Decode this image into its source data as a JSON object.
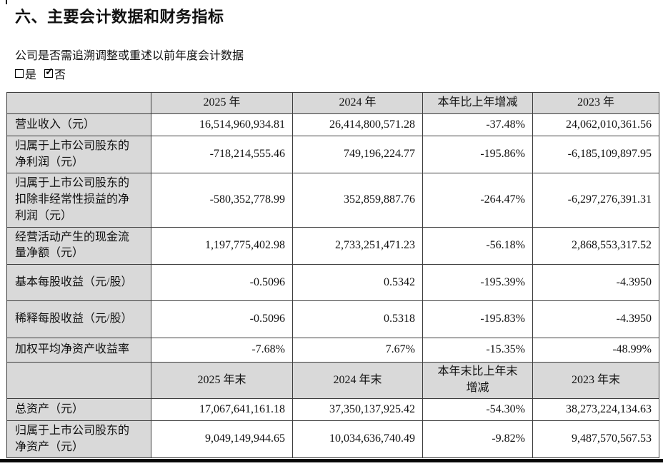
{
  "page": {
    "title": "六、主要会计数据和财务指标",
    "question": "公司是否需追溯调整或重述以前年度会计数据",
    "options": {
      "yes_label": "是",
      "no_label": "否"
    }
  },
  "colors": {
    "header_fill": "#d9d9d9",
    "border": "#3d3d3d",
    "bottom_bar": "#070707"
  },
  "table": {
    "header_row_1": [
      "",
      "2025 年",
      "2024 年",
      "本年比上年增减",
      "2023 年"
    ],
    "rows_1": [
      {
        "label": "营业收入（元）",
        "values": [
          "16,514,960,934.81",
          "26,414,800,571.28",
          "-37.48%",
          "24,062,010,361.56"
        ]
      },
      {
        "label": "归属于上市公司股东的净利润（元）",
        "values": [
          "-718,214,555.46",
          "749,196,224.77",
          "-195.86%",
          "-6,185,109,897.95"
        ]
      },
      {
        "label": "归属于上市公司股东的扣除非经常性损益的净利润（元）",
        "values": [
          "-580,352,778.99",
          "352,859,887.76",
          "-264.47%",
          "-6,297,276,391.31"
        ]
      },
      {
        "label": "经营活动产生的现金流量净额（元）",
        "values": [
          "1,197,775,402.98",
          "2,733,251,471.23",
          "-56.18%",
          "2,868,553,317.52"
        ]
      },
      {
        "label": "基本每股收益（元/股）",
        "values": [
          "-0.5096",
          "0.5342",
          "-195.39%",
          "-4.3950"
        ]
      },
      {
        "label": "稀释每股收益（元/股）",
        "values": [
          "-0.5096",
          "0.5318",
          "-195.83%",
          "-4.3950"
        ]
      },
      {
        "label": "加权平均净资产收益率",
        "values": [
          "-7.68%",
          "7.67%",
          "-15.35%",
          "-48.99%"
        ]
      }
    ],
    "header_row_2": [
      "",
      "2025 年末",
      "2024 年末",
      "本年末比上年末增减",
      "2023 年末"
    ],
    "rows_2": [
      {
        "label": "总资产（元）",
        "values": [
          "17,067,641,161.18",
          "37,350,137,925.42",
          "-54.30%",
          "38,273,224,134.63"
        ]
      },
      {
        "label": "归属于上市公司股东的净资产（元）",
        "values": [
          "9,049,149,944.65",
          "10,034,636,740.49",
          "-9.82%",
          "9,487,570,567.53"
        ]
      }
    ]
  }
}
